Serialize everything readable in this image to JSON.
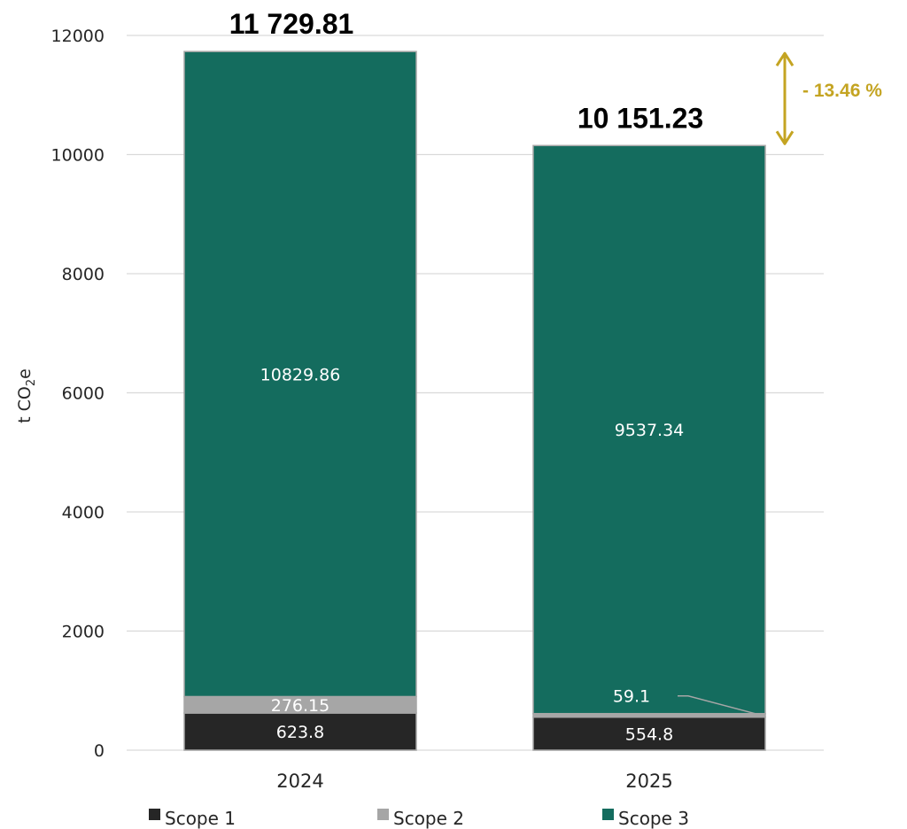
{
  "chart_data": {
    "type": "bar",
    "stacked": true,
    "categories": [
      "2024",
      "2025"
    ],
    "series": [
      {
        "name": "Scope 1",
        "values": [
          623.8,
          554.8
        ],
        "color": "#262626",
        "labels": [
          "623.8",
          "554.8"
        ]
      },
      {
        "name": "Scope 2",
        "values": [
          276.15,
          59.1
        ],
        "color": "#A6A6A6",
        "labels": [
          "276.15",
          "59.1"
        ]
      },
      {
        "name": "Scope 3",
        "values": [
          10829.86,
          9537.34
        ],
        "color": "#146C5E",
        "labels": [
          "10829.86",
          "9537.34"
        ]
      }
    ],
    "totals": [
      "11 729.81",
      "10 151.23"
    ],
    "change_label": "- 13.46 %",
    "change_color": "#C4A422",
    "ylabel": {
      "main": "t CO",
      "sub": "2",
      "suffix": "e"
    },
    "ylim": [
      0,
      12000
    ],
    "yticks": [
      0,
      2000,
      4000,
      6000,
      8000,
      10000,
      12000
    ],
    "grid": true,
    "legend_position": "bottom"
  }
}
